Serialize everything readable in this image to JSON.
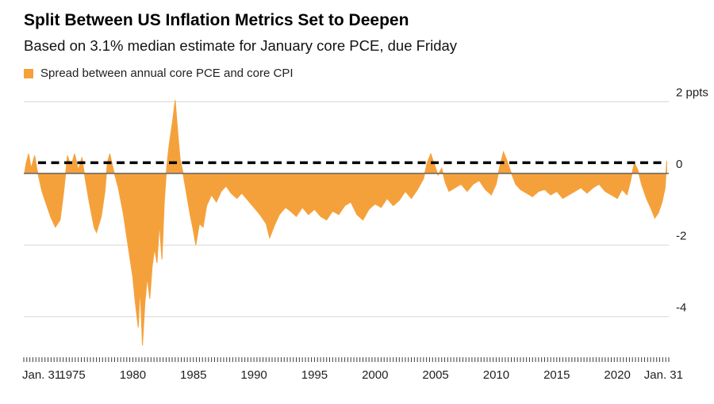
{
  "header": {
    "title": "Split Between US Inflation Metrics Set to Deepen",
    "subtitle": "Based on 3.1% median estimate for January core PCE, due Friday",
    "legend": {
      "label": "Spread between annual core PCE and core CPI",
      "swatch_color": "#F5A13B"
    }
  },
  "colors": {
    "series": "#F5A13B",
    "gridline": "#d8d8d8",
    "zero_line": "#55565a",
    "reference_line": "#000000",
    "tick": "#3c3c3c",
    "axis_text": "#1f1f1f"
  },
  "chart_data": {
    "type": "area",
    "title": "Split Between US Inflation Metrics Set to Deepen",
    "subtitle": "Based on 3.1% median estimate for January core PCE, due Friday",
    "unit": "ppts",
    "baseline": 0,
    "grid": "horizontal",
    "legend_position": "top-left",
    "xlim": [
      1971.0,
      2024.25
    ],
    "ylim": [
      -5.0,
      2.3
    ],
    "y_ticks": [
      {
        "value": 2,
        "label": "2 ppts"
      },
      {
        "value": 0,
        "label": "0"
      },
      {
        "value": -2,
        "label": "-2"
      },
      {
        "value": -4,
        "label": "-4"
      }
    ],
    "x_ticks": [
      {
        "year": 1971.08,
        "label": "Jan. 31"
      },
      {
        "year": 1975,
        "label": "1975"
      },
      {
        "year": 1980,
        "label": "1980"
      },
      {
        "year": 1985,
        "label": "1985"
      },
      {
        "year": 1990,
        "label": "1990"
      },
      {
        "year": 1995,
        "label": "1995"
      },
      {
        "year": 2000,
        "label": "2000"
      },
      {
        "year": 2005,
        "label": "2005"
      },
      {
        "year": 2010,
        "label": "2010"
      },
      {
        "year": 2015,
        "label": "2015"
      },
      {
        "year": 2020,
        "label": "2020"
      },
      {
        "year": 2024.08,
        "label": "Jan. 31"
      }
    ],
    "minor_tick_interval_years": 0.25,
    "reference_line": {
      "value": 0.3,
      "style": "dashed"
    },
    "series": [
      {
        "name": "Spread between annual core PCE and core CPI",
        "color": "#F5A13B",
        "points": [
          [
            1971.08,
            0.05
          ],
          [
            1971.2,
            0.3
          ],
          [
            1971.4,
            0.55
          ],
          [
            1971.6,
            0.15
          ],
          [
            1971.9,
            0.5
          ],
          [
            1972.1,
            0.1
          ],
          [
            1972.5,
            -0.5
          ],
          [
            1972.9,
            -0.9
          ],
          [
            1973.2,
            -1.2
          ],
          [
            1973.6,
            -1.5
          ],
          [
            1974.0,
            -1.3
          ],
          [
            1974.3,
            -0.5
          ],
          [
            1974.6,
            0.5
          ],
          [
            1974.9,
            0.2
          ],
          [
            1975.2,
            0.55
          ],
          [
            1975.5,
            0.1
          ],
          [
            1975.8,
            0.45
          ],
          [
            1976.0,
            0.0
          ],
          [
            1976.4,
            -0.8
          ],
          [
            1976.8,
            -1.5
          ],
          [
            1977.0,
            -1.65
          ],
          [
            1977.4,
            -1.2
          ],
          [
            1977.7,
            -0.5
          ],
          [
            1977.9,
            0.3
          ],
          [
            1978.1,
            0.55
          ],
          [
            1978.4,
            0.1
          ],
          [
            1978.8,
            -0.4
          ],
          [
            1979.2,
            -1.1
          ],
          [
            1979.6,
            -2.0
          ],
          [
            1980.0,
            -2.9
          ],
          [
            1980.2,
            -3.6
          ],
          [
            1980.45,
            -4.3
          ],
          [
            1980.6,
            -3.2
          ],
          [
            1980.8,
            -4.8
          ],
          [
            1981.0,
            -3.6
          ],
          [
            1981.2,
            -2.9
          ],
          [
            1981.4,
            -3.5
          ],
          [
            1981.6,
            -2.6
          ],
          [
            1981.8,
            -2.1
          ],
          [
            1982.0,
            -2.5
          ],
          [
            1982.2,
            -1.4
          ],
          [
            1982.4,
            -2.4
          ],
          [
            1982.6,
            -0.8
          ],
          [
            1982.8,
            0.2
          ],
          [
            1983.0,
            0.8
          ],
          [
            1983.3,
            1.5
          ],
          [
            1983.5,
            2.05
          ],
          [
            1983.7,
            1.2
          ],
          [
            1983.9,
            0.4
          ],
          [
            1984.1,
            0.1
          ],
          [
            1984.4,
            -0.5
          ],
          [
            1984.7,
            -1.1
          ],
          [
            1985.0,
            -1.6
          ],
          [
            1985.2,
            -2.0
          ],
          [
            1985.5,
            -1.4
          ],
          [
            1985.8,
            -1.5
          ],
          [
            1986.1,
            -0.9
          ],
          [
            1986.5,
            -0.6
          ],
          [
            1986.9,
            -0.8
          ],
          [
            1987.3,
            -0.5
          ],
          [
            1987.7,
            -0.35
          ],
          [
            1988.1,
            -0.55
          ],
          [
            1988.6,
            -0.7
          ],
          [
            1989.0,
            -0.55
          ],
          [
            1989.5,
            -0.75
          ],
          [
            1990.0,
            -0.95
          ],
          [
            1990.5,
            -1.15
          ],
          [
            1991.0,
            -1.4
          ],
          [
            1991.3,
            -1.8
          ],
          [
            1991.7,
            -1.45
          ],
          [
            1992.1,
            -1.15
          ],
          [
            1992.6,
            -0.95
          ],
          [
            1993.0,
            -1.05
          ],
          [
            1993.5,
            -1.2
          ],
          [
            1994.0,
            -0.95
          ],
          [
            1994.5,
            -1.15
          ],
          [
            1995.0,
            -1.0
          ],
          [
            1995.5,
            -1.2
          ],
          [
            1996.0,
            -1.3
          ],
          [
            1996.5,
            -1.05
          ],
          [
            1997.0,
            -1.15
          ],
          [
            1997.5,
            -0.9
          ],
          [
            1998.0,
            -0.8
          ],
          [
            1998.5,
            -1.15
          ],
          [
            1999.0,
            -1.3
          ],
          [
            1999.5,
            -1.0
          ],
          [
            2000.0,
            -0.85
          ],
          [
            2000.5,
            -0.95
          ],
          [
            2001.0,
            -0.7
          ],
          [
            2001.5,
            -0.9
          ],
          [
            2002.0,
            -0.75
          ],
          [
            2002.5,
            -0.5
          ],
          [
            2003.0,
            -0.7
          ],
          [
            2003.5,
            -0.45
          ],
          [
            2004.0,
            -0.15
          ],
          [
            2004.3,
            0.3
          ],
          [
            2004.6,
            0.55
          ],
          [
            2004.9,
            0.25
          ],
          [
            2005.2,
            -0.05
          ],
          [
            2005.5,
            0.15
          ],
          [
            2005.8,
            -0.25
          ],
          [
            2006.1,
            -0.5
          ],
          [
            2006.6,
            -0.4
          ],
          [
            2007.1,
            -0.3
          ],
          [
            2007.6,
            -0.5
          ],
          [
            2008.1,
            -0.3
          ],
          [
            2008.6,
            -0.2
          ],
          [
            2009.1,
            -0.45
          ],
          [
            2009.6,
            -0.6
          ],
          [
            2010.0,
            -0.3
          ],
          [
            2010.3,
            0.2
          ],
          [
            2010.6,
            0.6
          ],
          [
            2010.9,
            0.35
          ],
          [
            2011.2,
            0.05
          ],
          [
            2011.6,
            -0.3
          ],
          [
            2012.0,
            -0.45
          ],
          [
            2012.5,
            -0.55
          ],
          [
            2013.0,
            -0.65
          ],
          [
            2013.5,
            -0.5
          ],
          [
            2014.0,
            -0.45
          ],
          [
            2014.5,
            -0.6
          ],
          [
            2015.0,
            -0.5
          ],
          [
            2015.5,
            -0.7
          ],
          [
            2016.0,
            -0.6
          ],
          [
            2016.5,
            -0.5
          ],
          [
            2017.0,
            -0.4
          ],
          [
            2017.5,
            -0.55
          ],
          [
            2018.0,
            -0.4
          ],
          [
            2018.5,
            -0.3
          ],
          [
            2019.0,
            -0.5
          ],
          [
            2019.5,
            -0.6
          ],
          [
            2020.0,
            -0.7
          ],
          [
            2020.4,
            -0.45
          ],
          [
            2020.8,
            -0.6
          ],
          [
            2021.1,
            -0.2
          ],
          [
            2021.4,
            0.3
          ],
          [
            2021.7,
            0.1
          ],
          [
            2022.0,
            -0.3
          ],
          [
            2022.4,
            -0.7
          ],
          [
            2022.8,
            -1.0
          ],
          [
            2023.1,
            -1.25
          ],
          [
            2023.4,
            -1.1
          ],
          [
            2023.7,
            -0.8
          ],
          [
            2023.95,
            -0.4
          ],
          [
            2024.08,
            0.35
          ]
        ]
      }
    ]
  }
}
